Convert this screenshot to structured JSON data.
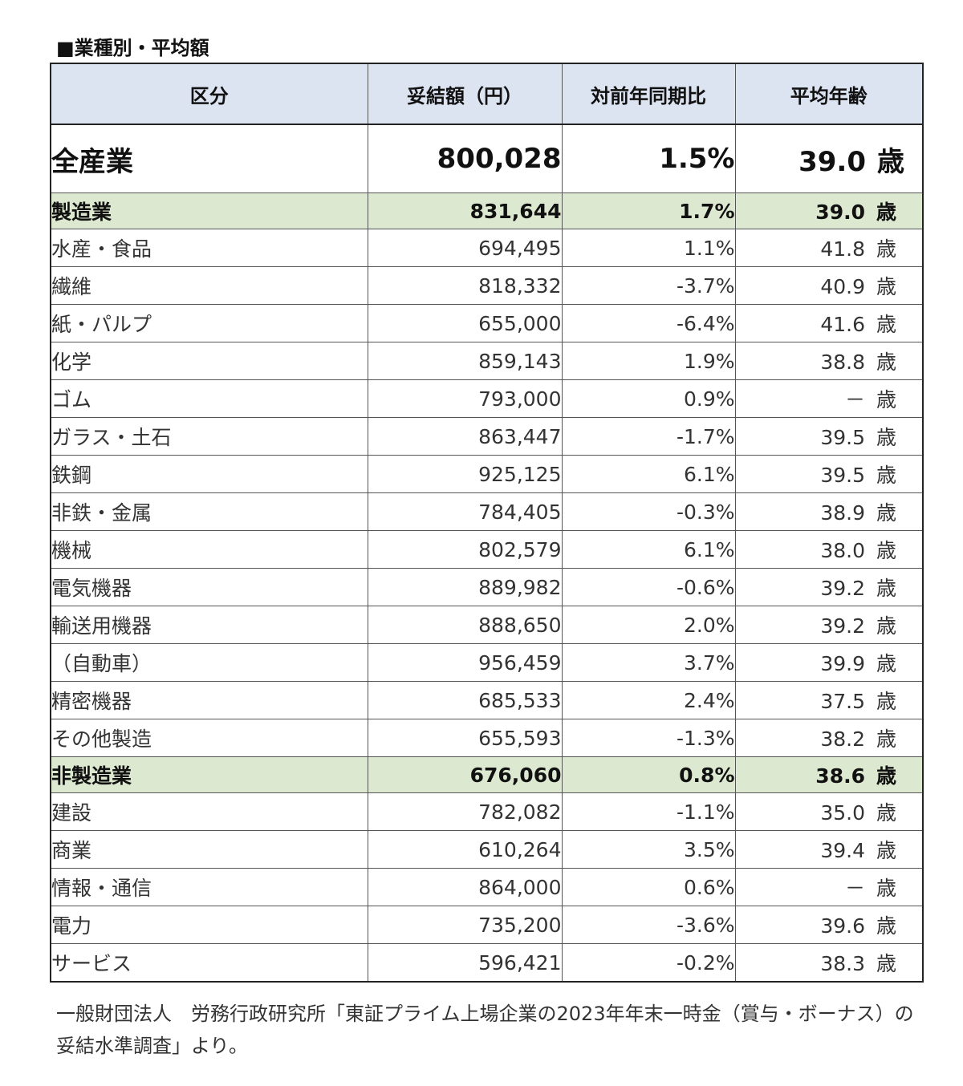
{
  "title": "■業種別・平均額",
  "headers": [
    "区分",
    "妥結額（円）",
    "対前年同期比",
    "平均年齢"
  ],
  "age_unit": "歳",
  "total": {
    "name": "全産業",
    "amount": "800,028",
    "yoy": "1.5%",
    "age": "39.0"
  },
  "rows": [
    {
      "type": "group",
      "name": "製造業",
      "amount": "831,644",
      "yoy": "1.7%",
      "age": "39.0"
    },
    {
      "type": "item",
      "name": "水産・食品",
      "amount": "694,495",
      "yoy": "1.1%",
      "age": "41.8"
    },
    {
      "type": "item",
      "name": "繊維",
      "amount": "818,332",
      "yoy": "-3.7%",
      "age": "40.9"
    },
    {
      "type": "item",
      "name": "紙・パルプ",
      "amount": "655,000",
      "yoy": "-6.4%",
      "age": "41.6"
    },
    {
      "type": "item",
      "name": "化学",
      "amount": "859,143",
      "yoy": "1.9%",
      "age": "38.8"
    },
    {
      "type": "item",
      "name": "ゴム",
      "amount": "793,000",
      "yoy": "0.9%",
      "age": "－"
    },
    {
      "type": "item",
      "name": "ガラス・土石",
      "amount": "863,447",
      "yoy": "-1.7%",
      "age": "39.5"
    },
    {
      "type": "item",
      "name": "鉄鋼",
      "amount": "925,125",
      "yoy": "6.1%",
      "age": "39.5"
    },
    {
      "type": "item",
      "name": "非鉄・金属",
      "amount": "784,405",
      "yoy": "-0.3%",
      "age": "38.9"
    },
    {
      "type": "item",
      "name": "機械",
      "amount": "802,579",
      "yoy": "6.1%",
      "age": "38.0"
    },
    {
      "type": "item",
      "name": "電気機器",
      "amount": "889,982",
      "yoy": "-0.6%",
      "age": "39.2"
    },
    {
      "type": "item",
      "name": "輸送用機器",
      "amount": "888,650",
      "yoy": "2.0%",
      "age": "39.2"
    },
    {
      "type": "item",
      "name": "（自動車）",
      "amount": "956,459",
      "yoy": "3.7%",
      "age": "39.9"
    },
    {
      "type": "item",
      "name": "精密機器",
      "amount": "685,533",
      "yoy": "2.4%",
      "age": "37.5"
    },
    {
      "type": "item",
      "name": "その他製造",
      "amount": "655,593",
      "yoy": "-1.3%",
      "age": "38.2"
    },
    {
      "type": "group",
      "name": "非製造業",
      "amount": "676,060",
      "yoy": "0.8%",
      "age": "38.6"
    },
    {
      "type": "item",
      "name": "建設",
      "amount": "782,082",
      "yoy": "-1.1%",
      "age": "35.0"
    },
    {
      "type": "item",
      "name": "商業",
      "amount": "610,264",
      "yoy": "3.5%",
      "age": "39.4"
    },
    {
      "type": "item",
      "name": "情報・通信",
      "amount": "864,000",
      "yoy": "0.6%",
      "age": "－"
    },
    {
      "type": "item",
      "name": "電力",
      "amount": "735,200",
      "yoy": "-3.6%",
      "age": "39.6"
    },
    {
      "type": "item",
      "name": "サービス",
      "amount": "596,421",
      "yoy": "-0.2%",
      "age": "38.3"
    }
  ],
  "source": "一般財団法人　労務行政研究所「東証プライム上場企業の2023年年末一時金（賞与・ボーナス）の妥結水準調査」より。"
}
